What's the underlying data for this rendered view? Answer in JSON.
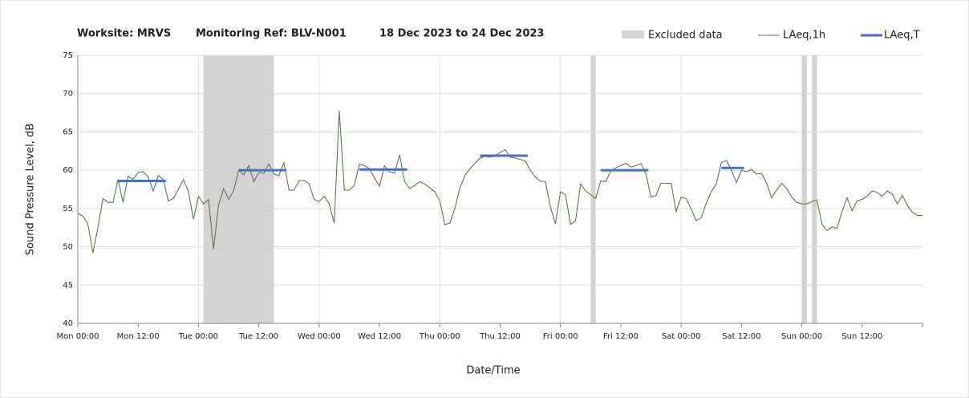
{
  "chart_data": {
    "type": "line",
    "title": [
      "Worksite: MRVS",
      "Monitoring Ref: BLV-N001",
      "18 Dec 2023 to 24 Dec 2023"
    ],
    "xlabel": "Date/Time",
    "ylabel": "Sound Pressure Level, dB",
    "xlim": [
      0,
      168
    ],
    "ylim": [
      40,
      75
    ],
    "yticks": [
      40,
      45,
      50,
      55,
      60,
      65,
      70,
      75
    ],
    "xticks": [
      {
        "value": 0,
        "label": "Mon 00:00"
      },
      {
        "value": 12,
        "label": "Mon 12:00"
      },
      {
        "value": 24,
        "label": "Tue 00:00"
      },
      {
        "value": 36,
        "label": "Tue 12:00"
      },
      {
        "value": 48,
        "label": "Wed 00:00"
      },
      {
        "value": 60,
        "label": "Wed 12:00"
      },
      {
        "value": 72,
        "label": "Thu 00:00"
      },
      {
        "value": 84,
        "label": "Thu 12:00"
      },
      {
        "value": 96,
        "label": "Fri 00:00"
      },
      {
        "value": 108,
        "label": "Fri 12:00"
      },
      {
        "value": 120,
        "label": "Sat 00:00"
      },
      {
        "value": 132,
        "label": "Sat 12:00"
      },
      {
        "value": 144,
        "label": "Sun 00:00"
      },
      {
        "value": 156,
        "label": "Sun 12:00"
      }
    ],
    "grid": true,
    "excluded": {
      "name": "Excluded data",
      "color": "#d3d3d3",
      "ranges": [
        [
          25,
          39
        ],
        [
          102,
          103
        ],
        [
          144,
          145
        ],
        [
          146,
          147
        ]
      ]
    },
    "x": [
      0,
      1,
      2,
      3,
      4,
      5,
      6,
      7,
      8,
      9,
      10,
      11,
      12,
      13,
      14,
      15,
      16,
      17,
      18,
      19,
      20,
      21,
      22,
      23,
      24,
      25,
      26,
      27,
      28,
      29,
      30,
      31,
      32,
      33,
      34,
      35,
      36,
      37,
      38,
      39,
      40,
      41,
      42,
      43,
      44,
      45,
      46,
      47,
      48,
      49,
      50,
      51,
      52,
      53,
      54,
      55,
      56,
      57,
      58,
      59,
      60,
      61,
      62,
      63,
      64,
      65,
      66,
      67,
      68,
      69,
      70,
      71,
      72,
      73,
      74,
      75,
      76,
      77,
      78,
      79,
      80,
      81,
      82,
      83,
      84,
      85,
      86,
      87,
      88,
      89,
      90,
      91,
      92,
      93,
      94,
      95,
      96,
      97,
      98,
      99,
      100,
      101,
      102,
      103,
      104,
      105,
      106,
      107,
      108,
      109,
      110,
      111,
      112,
      113,
      114,
      115,
      116,
      117,
      118,
      119,
      120,
      121,
      122,
      123,
      124,
      125,
      126,
      127,
      128,
      129,
      130,
      131,
      132,
      133,
      134,
      135,
      136,
      137,
      138,
      139,
      140,
      141,
      142,
      143,
      144,
      145,
      146,
      147,
      148,
      149,
      150,
      151,
      152,
      153,
      154,
      155,
      156,
      157,
      158,
      159,
      160,
      161,
      162,
      163,
      164,
      165,
      166,
      167,
      168
    ],
    "series": [
      {
        "name": "LAeq,1h",
        "color": "#5b7a4a",
        "values": [
          54.4,
          54,
          53,
          49.2,
          52.5,
          56.3,
          55.8,
          55.8,
          58.8,
          55.8,
          59.2,
          58.8,
          59.7,
          59.8,
          59.1,
          57.3,
          59.3,
          58.8,
          56,
          56.3,
          57.5,
          58.8,
          57.2,
          53.6,
          56.6,
          55.6,
          56.2,
          49.7,
          55.5,
          57.6,
          56.2,
          57.3,
          60,
          59.4,
          60.6,
          58.5,
          59.7,
          59.6,
          60.8,
          59.5,
          59.3,
          61,
          57.4,
          57.4,
          58.6,
          58.7,
          58.2,
          56.2,
          55.9,
          56.6,
          55.6,
          53.1,
          67.8,
          57.4,
          57.4,
          58,
          60.8,
          60.6,
          60.2,
          59,
          57.9,
          60.6,
          59.8,
          59.6,
          62,
          58.5,
          57.6,
          58,
          58.5,
          58.2,
          57.7,
          57.2,
          56,
          52.9,
          53.1,
          55,
          57.7,
          59.3,
          60.2,
          60.9,
          61.6,
          61.8,
          61.7,
          61.9,
          62.3,
          62.7,
          61.7,
          61.6,
          61.4,
          61.2,
          60,
          59.1,
          58.6,
          58.5,
          55.2,
          53,
          57.2,
          56.8,
          52.9,
          53.4,
          58.2,
          57.3,
          56.8,
          56.3,
          58.6,
          58.5,
          59.9,
          60.3,
          60.6,
          60.9,
          60.4,
          60.6,
          60.9,
          59.5,
          56.5,
          56.7,
          58.3,
          58.3,
          58.3,
          54.6,
          56.5,
          56.3,
          54.9,
          53.4,
          53.8,
          55.7,
          57.2,
          58.2,
          61,
          61.3,
          60,
          58.4,
          60,
          59.8,
          60.1,
          59.5,
          59.6,
          58.3,
          56.4,
          57.4,
          58.3,
          57.6,
          56.5,
          55.8,
          55.6,
          55.6,
          55.9,
          56.1,
          53,
          52.1,
          52.6,
          52.4,
          54.6,
          56.4,
          54.7,
          56,
          56.2,
          56.6,
          57.3,
          57.1,
          56.6,
          57.3,
          56.9,
          55.6,
          56.7,
          55.4,
          54.5,
          54.1,
          54.1
        ]
      }
    ],
    "periods": {
      "name": "LAeq,T",
      "color": "#4472c4",
      "segments": [
        {
          "x": [
            8,
            17.5
          ],
          "value": 58.6
        },
        {
          "x": [
            32,
            41.5
          ],
          "value": 60
        },
        {
          "x": [
            56,
            65.5
          ],
          "value": 60.1
        },
        {
          "x": [
            80,
            89.5
          ],
          "value": 61.9
        },
        {
          "x": [
            104,
            113.5
          ],
          "value": 60
        },
        {
          "x": [
            128,
            132.5
          ],
          "value": 60.3
        }
      ]
    }
  }
}
